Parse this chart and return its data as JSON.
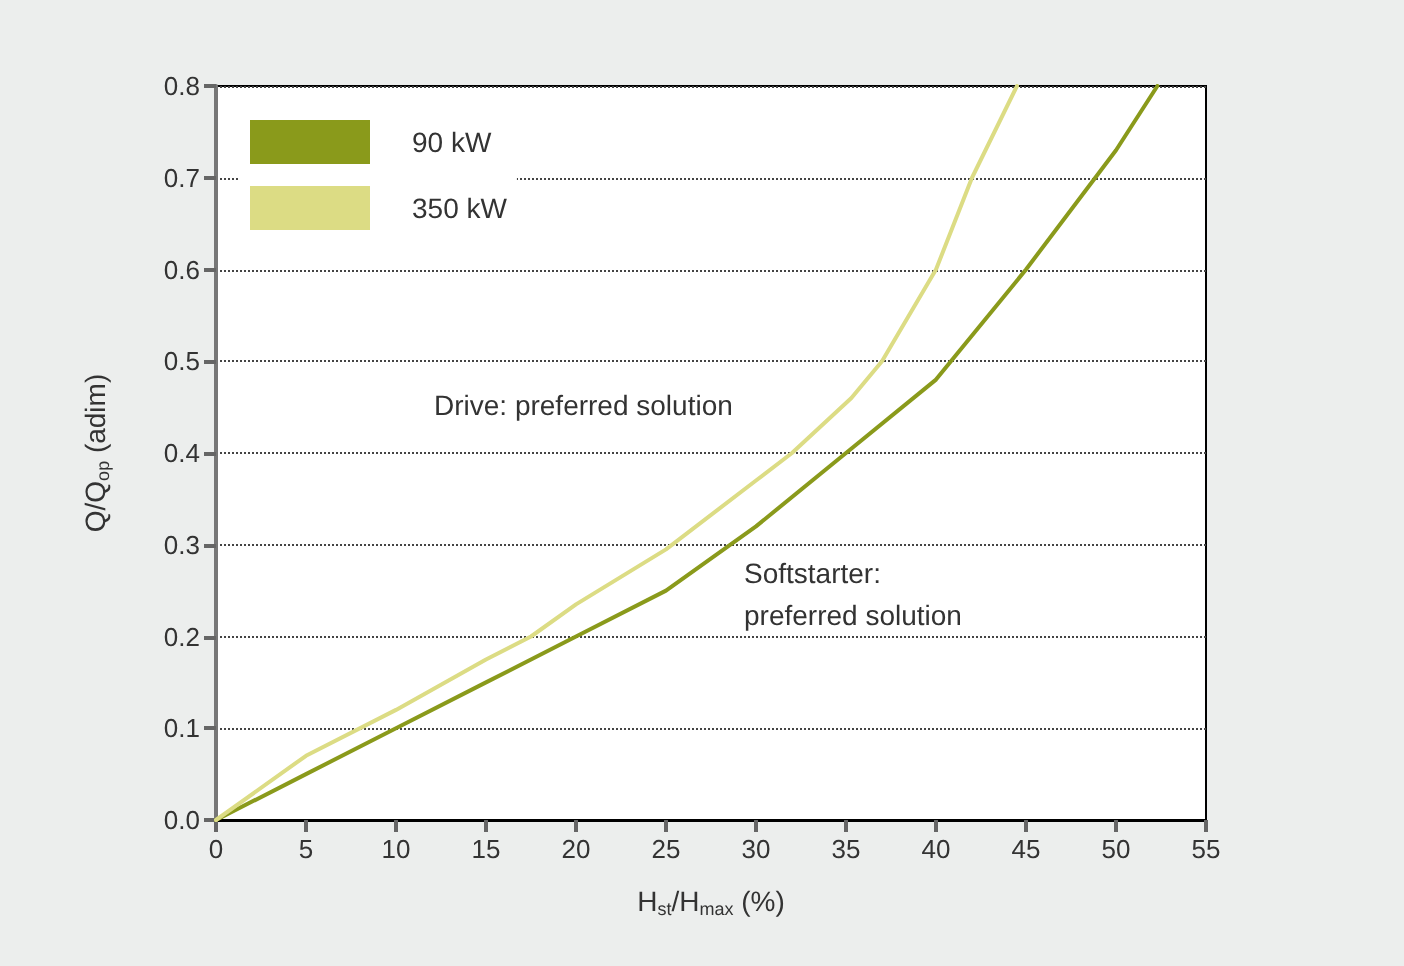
{
  "chart_data": {
    "type": "line",
    "xlabel": "H$_{st}$/H$_{max}$ (%)",
    "ylabel": "Q/Q$_{op}$ (adim)",
    "xlim": [
      0,
      55
    ],
    "xticks": [
      0,
      5,
      10,
      15,
      20,
      25,
      30,
      35,
      40,
      45,
      50,
      55
    ],
    "ylim": [
      0,
      0.8
    ],
    "yticks": [
      {
        "value": 0,
        "label": "0.0"
      },
      0.1,
      0.2,
      0.3,
      0.4,
      0.5,
      0.6,
      0.7,
      0.8
    ],
    "series": [
      {
        "name": "90 kW",
        "color": "#8a9a1b",
        "x": [
          0,
          5,
          10,
          15,
          20,
          25,
          30,
          35,
          40,
          45,
          50,
          52.3
        ],
        "values": [
          0,
          0.05,
          0.1,
          0.15,
          0.2,
          0.25,
          0.32,
          0.4,
          0.48,
          0.6,
          0.73,
          0.8
        ]
      },
      {
        "name": "350 kW",
        "color": "#dcdc84",
        "x": [
          0,
          5,
          10,
          15,
          17.5,
          20,
          25,
          30,
          32,
          35.3,
          37,
          40,
          42,
          44.5
        ],
        "values": [
          0,
          0.07,
          0.12,
          0.175,
          0.2,
          0.235,
          0.295,
          0.37,
          0.4,
          0.46,
          0.5,
          0.6,
          0.7,
          0.8
        ]
      }
    ],
    "annotations": [
      "Drive: preferred solution",
      "Softstarter:\npreferred solution"
    ],
    "grid": "y",
    "legend": "top left",
    "marker": "none",
    "line_style": "solid"
  }
}
